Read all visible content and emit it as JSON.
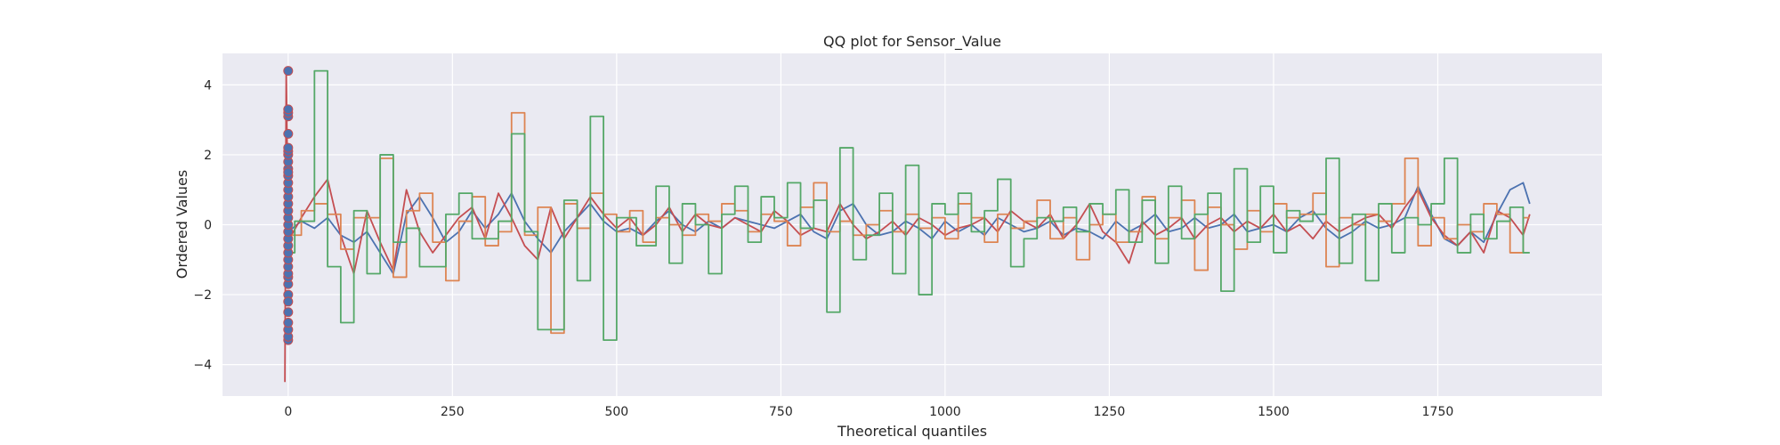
{
  "chart_data": {
    "type": "line",
    "title": "QQ plot for Sensor_Value",
    "xlabel": "Theoretical quantiles",
    "ylabel": "Ordered Values",
    "xlim": [
      -100,
      2000
    ],
    "ylim": [
      -4.9,
      4.9
    ],
    "xticks": [
      0,
      250,
      500,
      750,
      1000,
      1250,
      1500,
      1750
    ],
    "yticks": [
      -4,
      -2,
      0,
      2,
      4
    ],
    "grid": true,
    "legend": "none",
    "colors": {
      "background": "#EAEAF2",
      "grid": "#FFFFFF",
      "blue": "#4C72B0",
      "orange": "#DD8452",
      "green": "#55A868",
      "red": "#C44E52"
    },
    "series": [
      {
        "color": "blue",
        "style": "line",
        "x": [
          0,
          20,
          40,
          60,
          80,
          100,
          120,
          140,
          160,
          180,
          200,
          220,
          240,
          260,
          280,
          300,
          320,
          340,
          360,
          380,
          400,
          420,
          440,
          460,
          480,
          500,
          520,
          540,
          560,
          580,
          600,
          620,
          640,
          660,
          680,
          700,
          720,
          740,
          760,
          780,
          800,
          820,
          840,
          860,
          880,
          900,
          920,
          940,
          960,
          980,
          1000,
          1020,
          1040,
          1060,
          1080,
          1100,
          1120,
          1140,
          1160,
          1180,
          1200,
          1220,
          1240,
          1260,
          1280,
          1300,
          1320,
          1340,
          1360,
          1380,
          1400,
          1420,
          1440,
          1460,
          1480,
          1500,
          1520,
          1540,
          1560,
          1580,
          1600,
          1620,
          1640,
          1660,
          1680,
          1700,
          1720,
          1740,
          1760,
          1780,
          1800,
          1820,
          1840,
          1860,
          1880,
          1890
        ],
        "y": [
          -0.2,
          0.1,
          -0.1,
          0.2,
          -0.3,
          -0.5,
          -0.2,
          -0.8,
          -1.4,
          0.3,
          0.8,
          0.2,
          -0.5,
          -0.2,
          0.4,
          -0.1,
          0.3,
          0.9,
          0.1,
          -0.4,
          -0.8,
          -0.2,
          0.2,
          0.6,
          0.1,
          -0.2,
          -0.1,
          -0.3,
          0.1,
          0.4,
          0.0,
          -0.2,
          0.1,
          -0.1,
          0.2,
          0.1,
          0.0,
          -0.1,
          0.1,
          0.3,
          -0.2,
          -0.4,
          0.4,
          0.6,
          0.0,
          -0.3,
          -0.2,
          0.1,
          -0.1,
          -0.4,
          0.1,
          -0.2,
          0.0,
          -0.3,
          0.2,
          0.0,
          -0.2,
          -0.1,
          0.1,
          -0.3,
          -0.1,
          -0.2,
          -0.4,
          0.1,
          -0.2,
          0.0,
          0.3,
          -0.2,
          -0.1,
          0.2,
          -0.1,
          0.0,
          0.3,
          -0.2,
          -0.1,
          0.0,
          -0.2,
          0.2,
          0.4,
          -0.1,
          -0.4,
          -0.2,
          0.1,
          -0.1,
          0.0,
          0.2,
          1.1,
          0.3,
          -0.4,
          -0.6,
          -0.2,
          -0.5,
          0.3,
          1.0,
          1.2,
          0.6
        ]
      },
      {
        "color": "red",
        "style": "line",
        "x": [
          -5,
          -3,
          0,
          5,
          20,
          40,
          60,
          80,
          100,
          120,
          140,
          160,
          180,
          200,
          220,
          240,
          260,
          280,
          300,
          320,
          340,
          360,
          380,
          400,
          420,
          440,
          460,
          480,
          500,
          520,
          540,
          560,
          580,
          600,
          620,
          640,
          660,
          680,
          700,
          720,
          740,
          760,
          780,
          800,
          820,
          840,
          860,
          880,
          900,
          920,
          940,
          960,
          980,
          1000,
          1020,
          1040,
          1060,
          1080,
          1100,
          1120,
          1140,
          1160,
          1180,
          1200,
          1220,
          1240,
          1260,
          1280,
          1300,
          1320,
          1340,
          1360,
          1380,
          1400,
          1420,
          1440,
          1460,
          1480,
          1500,
          1520,
          1540,
          1560,
          1580,
          1600,
          1620,
          1640,
          1660,
          1680,
          1700,
          1720,
          1740,
          1760,
          1780,
          1800,
          1820,
          1840,
          1860,
          1880,
          1890
        ],
        "y": [
          -4.5,
          4.4,
          0.1,
          -0.3,
          0.2,
          0.8,
          1.3,
          -0.3,
          -1.4,
          0.4,
          -0.5,
          -1.3,
          1.0,
          -0.2,
          -0.8,
          -0.3,
          0.2,
          0.5,
          -0.4,
          0.9,
          0.2,
          -0.6,
          -1.0,
          0.5,
          -0.4,
          0.2,
          0.8,
          0.3,
          -0.1,
          0.2,
          -0.3,
          0.0,
          0.5,
          -0.2,
          0.3,
          0.0,
          -0.1,
          0.2,
          0.0,
          -0.2,
          0.4,
          0.1,
          -0.3,
          -0.1,
          -0.2,
          0.6,
          0.0,
          -0.4,
          -0.2,
          0.1,
          -0.3,
          0.2,
          0.0,
          -0.3,
          -0.1,
          0.0,
          0.2,
          -0.2,
          0.4,
          0.1,
          -0.1,
          0.3,
          -0.4,
          0.0,
          0.6,
          -0.2,
          -0.5,
          -1.1,
          0.1,
          -0.3,
          -0.1,
          0.2,
          -0.4,
          0.0,
          0.2,
          -0.2,
          0.1,
          -0.1,
          0.3,
          -0.2,
          0.0,
          -0.4,
          0.1,
          -0.2,
          0.0,
          0.2,
          0.3,
          -0.1,
          0.5,
          1.0,
          0.2,
          -0.3,
          -0.6,
          -0.2,
          -0.8,
          0.4,
          0.2,
          -0.3,
          0.3
        ]
      },
      {
        "color": "orange",
        "style": "step",
        "x": [
          0,
          20,
          40,
          60,
          80,
          100,
          140,
          160,
          180,
          200,
          220,
          240,
          260,
          280,
          300,
          320,
          340,
          360,
          380,
          400,
          420,
          440,
          460,
          480,
          500,
          520,
          540,
          560,
          580,
          600,
          620,
          640,
          660,
          680,
          700,
          720,
          740,
          760,
          780,
          800,
          820,
          840,
          860,
          880,
          900,
          920,
          940,
          960,
          980,
          1000,
          1020,
          1040,
          1060,
          1080,
          1100,
          1120,
          1140,
          1160,
          1180,
          1200,
          1220,
          1240,
          1260,
          1280,
          1300,
          1320,
          1340,
          1360,
          1380,
          1400,
          1420,
          1440,
          1460,
          1480,
          1500,
          1520,
          1540,
          1560,
          1580,
          1600,
          1620,
          1640,
          1660,
          1680,
          1700,
          1720,
          1740,
          1760,
          1780,
          1800,
          1820,
          1840,
          1860,
          1880
        ],
        "y": [
          -0.3,
          0.4,
          0.6,
          0.3,
          -0.7,
          0.2,
          1.9,
          -1.5,
          0.4,
          0.9,
          -0.5,
          -1.6,
          0.1,
          0.8,
          -0.6,
          -0.2,
          3.2,
          -0.3,
          0.5,
          -3.1,
          0.6,
          -0.1,
          0.9,
          0.3,
          -0.2,
          0.4,
          -0.5,
          0.2,
          0.0,
          -0.3,
          0.3,
          0.1,
          0.6,
          0.4,
          -0.2,
          0.3,
          0.1,
          -0.6,
          0.5,
          1.2,
          -0.2,
          0.1,
          -0.3,
          0.0,
          0.4,
          -0.2,
          0.3,
          -0.1,
          0.2,
          -0.4,
          0.6,
          0.2,
          -0.5,
          0.3,
          -0.1,
          0.1,
          0.7,
          -0.4,
          0.2,
          -1.0,
          0.0,
          0.3,
          -0.5,
          -0.2,
          0.8,
          -0.4,
          0.2,
          0.7,
          -1.3,
          0.5,
          0.0,
          -0.7,
          0.4,
          -0.2,
          0.6,
          0.2,
          0.3,
          0.9,
          -1.2,
          0.2,
          0.0,
          0.3,
          0.1,
          0.6,
          1.9,
          -0.6,
          0.2,
          -0.4,
          0.0,
          -0.2,
          0.6,
          0.3,
          -0.8,
          0.2
        ]
      },
      {
        "color": "green",
        "style": "step",
        "x": [
          0,
          10,
          40,
          60,
          80,
          100,
          120,
          140,
          160,
          180,
          200,
          240,
          260,
          280,
          320,
          340,
          360,
          380,
          420,
          440,
          460,
          480,
          500,
          530,
          560,
          580,
          600,
          620,
          640,
          660,
          680,
          700,
          720,
          740,
          760,
          780,
          800,
          820,
          840,
          860,
          880,
          900,
          920,
          940,
          960,
          980,
          1000,
          1020,
          1040,
          1060,
          1080,
          1100,
          1120,
          1140,
          1160,
          1180,
          1200,
          1220,
          1240,
          1260,
          1280,
          1300,
          1320,
          1340,
          1360,
          1380,
          1400,
          1420,
          1440,
          1460,
          1480,
          1500,
          1520,
          1540,
          1560,
          1580,
          1600,
          1620,
          1640,
          1660,
          1680,
          1700,
          1720,
          1740,
          1760,
          1780,
          1800,
          1820,
          1840,
          1860,
          1880
        ],
        "y": [
          -0.8,
          0.1,
          4.4,
          -1.2,
          -2.8,
          0.4,
          -1.4,
          2.0,
          -0.5,
          -0.1,
          -1.2,
          0.3,
          0.9,
          -0.4,
          0.1,
          2.6,
          -0.2,
          -3.0,
          0.7,
          -1.6,
          3.1,
          -3.3,
          0.2,
          -0.6,
          1.1,
          -1.1,
          0.6,
          0.0,
          -1.4,
          0.3,
          1.1,
          -0.5,
          0.8,
          0.2,
          1.2,
          -0.1,
          0.7,
          -2.5,
          2.2,
          -1.0,
          -0.3,
          0.9,
          -1.4,
          1.7,
          -2.0,
          0.6,
          0.3,
          0.9,
          -0.2,
          0.4,
          1.3,
          -1.2,
          -0.4,
          0.2,
          0.1,
          0.5,
          -0.2,
          0.6,
          0.3,
          1.0,
          -0.5,
          0.7,
          -1.1,
          1.1,
          -0.4,
          0.3,
          0.9,
          -1.9,
          1.6,
          -0.5,
          1.1,
          -0.8,
          0.4,
          0.1,
          0.3,
          1.9,
          -1.1,
          0.3,
          -1.6,
          0.6,
          -0.8,
          0.2,
          0.0,
          0.6,
          1.9,
          -0.8,
          0.3,
          -0.4,
          0.1,
          0.5,
          -0.8
        ]
      },
      {
        "color": "blue",
        "style": "markers",
        "x": [
          0,
          0,
          0,
          0,
          0,
          0,
          0,
          0,
          0,
          0,
          0,
          0,
          0,
          0,
          0,
          0,
          0,
          0,
          0,
          0,
          0,
          0,
          0,
          0,
          0,
          0,
          0,
          0,
          0,
          0,
          0,
          0,
          0,
          0,
          0
        ],
        "y": [
          -3.3,
          -3.2,
          -3.0,
          -2.8,
          -2.5,
          -2.0,
          -1.7,
          -1.5,
          -1.4,
          -1.2,
          -1.0,
          -0.8,
          -0.6,
          -0.4,
          -0.2,
          0.0,
          0.2,
          0.4,
          0.6,
          0.8,
          1.0,
          1.2,
          1.4,
          1.6,
          1.8,
          2.0,
          2.1,
          2.2,
          2.6,
          3.1,
          3.2,
          3.3,
          4.4,
          1.5,
          -2.2
        ]
      }
    ]
  }
}
